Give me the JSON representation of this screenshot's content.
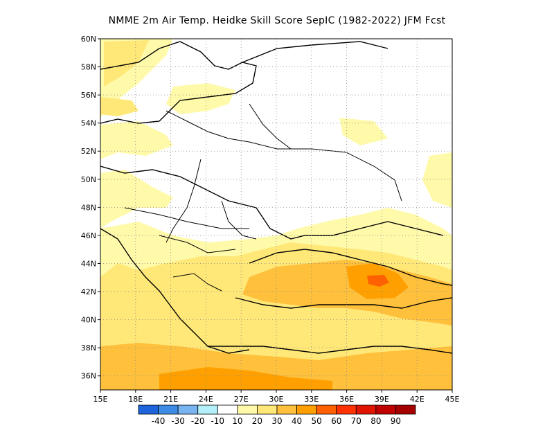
{
  "title": "NMME  2m Air Temp. Heidke Skill Score SepIC (1982-2022) JFM Fcst",
  "chart_data": {
    "type": "heatmap",
    "title": "NMME  2m Air Temp. Heidke Skill Score SepIC (1982-2022) JFM Fcst",
    "lon_range": [
      15,
      45
    ],
    "lat_range": [
      35,
      60
    ],
    "x_ticks": [
      "15E",
      "18E",
      "21E",
      "24E",
      "27E",
      "30E",
      "33E",
      "36E",
      "39E",
      "42E",
      "45E"
    ],
    "y_ticks": [
      "36N",
      "38N",
      "40N",
      "42N",
      "44N",
      "46N",
      "48N",
      "50N",
      "52N",
      "54N",
      "56N",
      "58N",
      "60N"
    ],
    "grid": true,
    "colorbar": {
      "labels": [
        "-40",
        "-30",
        "-20",
        "-10",
        "10",
        "20",
        "30",
        "40",
        "50",
        "60",
        "70",
        "80",
        "90"
      ],
      "colors": [
        "#1e64dc",
        "#3c8ce6",
        "#78b4f0",
        "#b4f0fa",
        "#ffffff",
        "#fffaaa",
        "#ffe878",
        "#ffc03c",
        "#ffa000",
        "#ff6000",
        "#ff3200",
        "#e11400",
        "#c00000",
        "#a50000"
      ]
    }
  }
}
